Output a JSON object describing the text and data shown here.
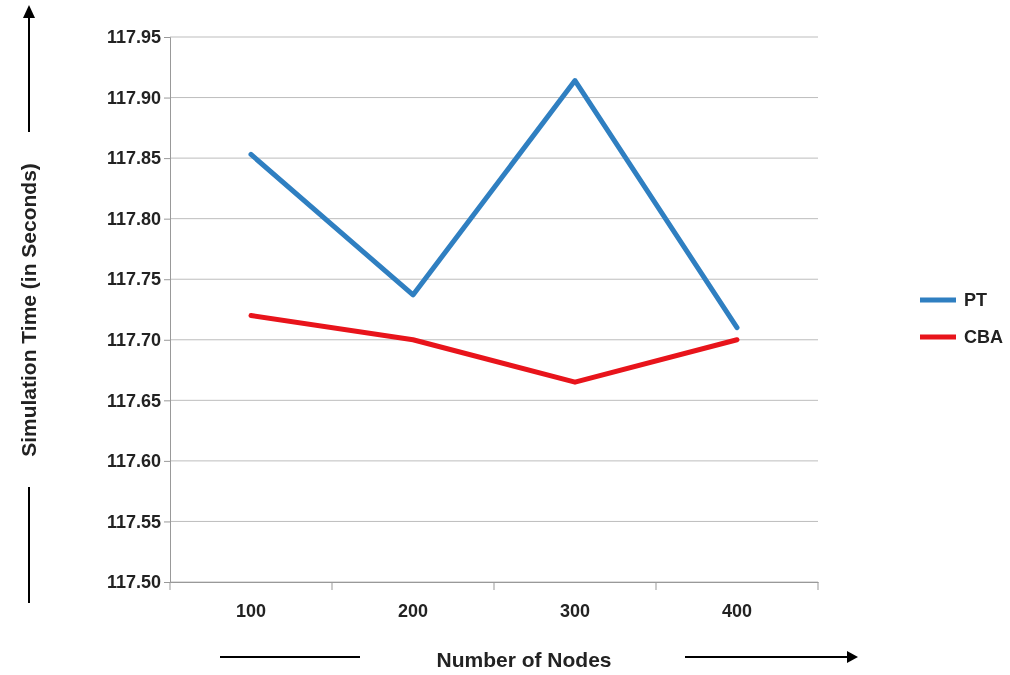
{
  "chart_data": {
    "type": "line",
    "xlabel": "Number of Nodes",
    "ylabel": "Simulation Time (in Seconds)",
    "categories": [
      "100",
      "200",
      "300",
      "400"
    ],
    "series": [
      {
        "name": "PT",
        "color": "#2f7fc1",
        "values": [
          117.853,
          117.737,
          117.914,
          117.71
        ]
      },
      {
        "name": "CBA",
        "color": "#e8141b",
        "values": [
          117.72,
          117.7,
          117.665,
          117.7
        ]
      }
    ],
    "ylim": [
      117.5,
      117.95
    ],
    "yticks": [
      {
        "value": 117.5,
        "label": "117.50"
      },
      {
        "value": 117.55,
        "label": "117.55"
      },
      {
        "value": 117.6,
        "label": "117.60"
      },
      {
        "value": 117.65,
        "label": "117.65"
      },
      {
        "value": 117.7,
        "label": "117.70"
      },
      {
        "value": 117.75,
        "label": "117.75"
      },
      {
        "value": 117.8,
        "label": "117.80"
      },
      {
        "value": 117.85,
        "label": "117.85"
      },
      {
        "value": 117.9,
        "label": "117.90"
      },
      {
        "value": 117.95,
        "label": "117.95"
      }
    ],
    "grid": "y",
    "legend": "right",
    "marker": "none",
    "line_style": "solid"
  }
}
